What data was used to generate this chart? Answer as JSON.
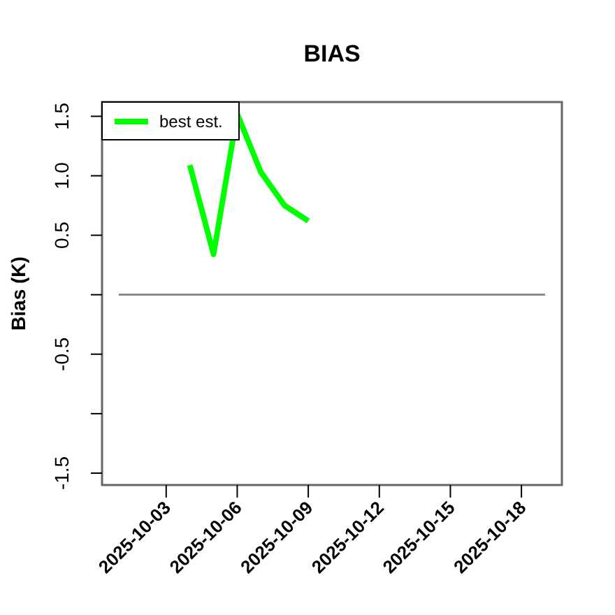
{
  "chart_data": {
    "type": "line",
    "title": "BIAS",
    "ylabel": "Bias (K)",
    "xlim": [
      "2025-09-30T07:00",
      "2025-10-19T17:00"
    ],
    "xticks": [
      {
        "value": "2025-10-03",
        "label": "2025-10-03"
      },
      {
        "value": "2025-10-06",
        "label": "2025-10-06"
      },
      {
        "value": "2025-10-09",
        "label": "2025-10-09"
      },
      {
        "value": "2025-10-12",
        "label": "2025-10-12"
      },
      {
        "value": "2025-10-15",
        "label": "2025-10-15"
      },
      {
        "value": "2025-10-18",
        "label": "2025-10-18"
      }
    ],
    "ylim": [
      -1.6,
      1.62
    ],
    "yticks": [
      -1.5,
      {
        "value": -1,
        "label": null
      },
      -0.5,
      {
        "value": 0,
        "label": null
      },
      0.5,
      {
        "value": 1,
        "label": "1.0"
      },
      1.5
    ],
    "series": [
      {
        "color": "#808080",
        "x": [
          "2025-10-01",
          "2025-10-19"
        ],
        "values": [
          0,
          0
        ]
      },
      {
        "name": "best est.",
        "color": "#00ff00",
        "x": [
          "2025-10-04",
          "2025-10-05",
          "2025-10-06",
          "2025-10-07",
          "2025-10-08",
          "2025-10-09"
        ],
        "values": [
          1.09,
          0.34,
          1.52,
          1.03,
          0.75,
          0.62
        ]
      }
    ],
    "legend": "top left",
    "grid": false
  }
}
